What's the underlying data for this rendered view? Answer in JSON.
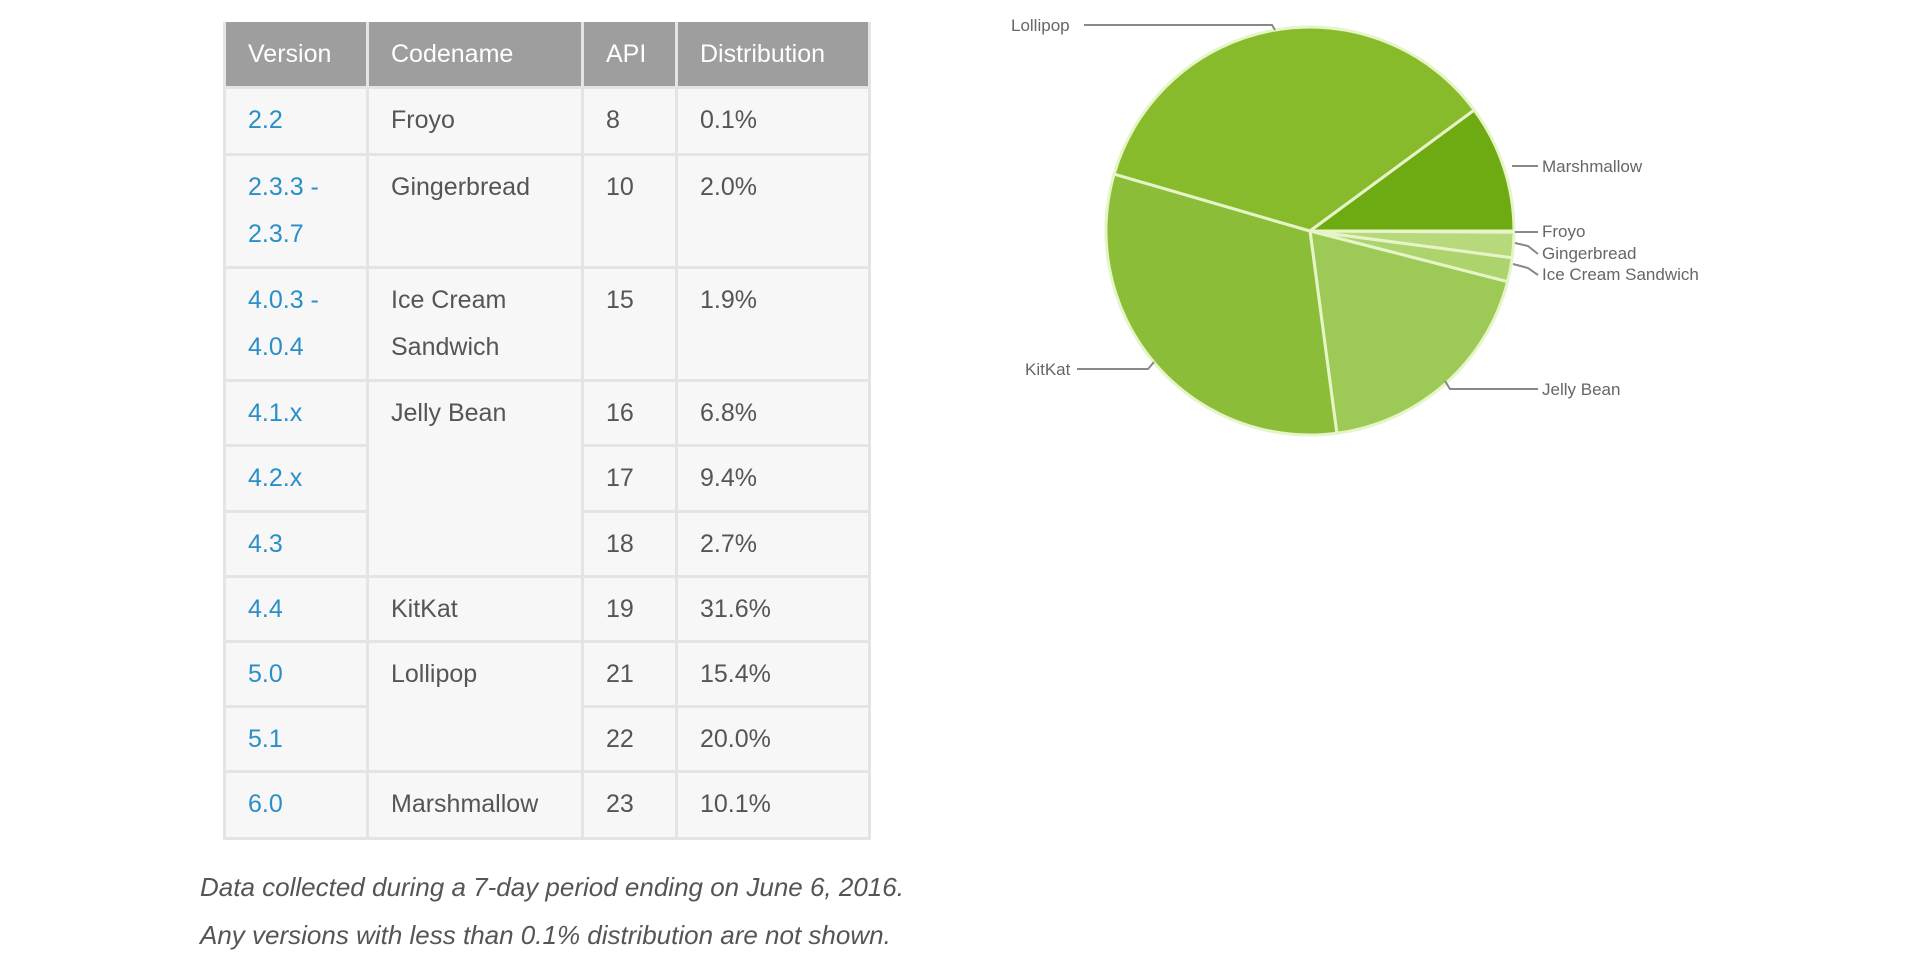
{
  "table": {
    "headers": [
      "Version",
      "Codename",
      "API",
      "Distribution"
    ],
    "rows": [
      {
        "version": "2.2",
        "codename": "Froyo",
        "api": "8",
        "distribution": "0.1%"
      },
      {
        "version": "2.3.3 - 2.3.7",
        "codename": "Gingerbread",
        "api": "10",
        "distribution": "2.0%"
      },
      {
        "version": "4.0.3 - 4.0.4",
        "codename": "Ice Cream Sandwich",
        "api": "15",
        "distribution": "1.9%"
      },
      {
        "version": "4.1.x",
        "codename": "Jelly Bean",
        "api": "16",
        "distribution": "6.8%"
      },
      {
        "version": "4.2.x",
        "codename": "",
        "api": "17",
        "distribution": "9.4%"
      },
      {
        "version": "4.3",
        "codename": "",
        "api": "18",
        "distribution": "2.7%"
      },
      {
        "version": "4.4",
        "codename": "KitKat",
        "api": "19",
        "distribution": "31.6%"
      },
      {
        "version": "5.0",
        "codename": "Lollipop",
        "api": "21",
        "distribution": "15.4%"
      },
      {
        "version": "5.1",
        "codename": "",
        "api": "22",
        "distribution": "20.0%"
      },
      {
        "version": "6.0",
        "codename": "Marshmallow",
        "api": "23",
        "distribution": "10.1%"
      }
    ]
  },
  "notes": [
    "Data collected during a 7-day period ending on June 6, 2016.",
    "Any versions with less than 0.1% distribution are not shown."
  ],
  "colors": {
    "header_bg": "#9e9e9e",
    "version_link": "#2a8fc7"
  },
  "chart_data": {
    "type": "pie",
    "start": "3 o'clock, clockwise",
    "slices": [
      {
        "label": "Froyo",
        "value": 0.1,
        "color": "#c9e39a"
      },
      {
        "label": "Gingerbread",
        "value": 2.0,
        "color": "#b7d97c"
      },
      {
        "label": "Ice Cream Sandwich",
        "value": 1.9,
        "color": "#acd36c"
      },
      {
        "label": "Jelly Bean",
        "value": 18.9,
        "color": "#9dc957"
      },
      {
        "label": "KitKat",
        "value": 31.6,
        "color": "#8cbd39"
      },
      {
        "label": "Lollipop",
        "value": 35.4,
        "color": "#88bb2c"
      },
      {
        "label": "Marshmallow",
        "value": 10.1,
        "color": "#6eab12"
      }
    ]
  }
}
